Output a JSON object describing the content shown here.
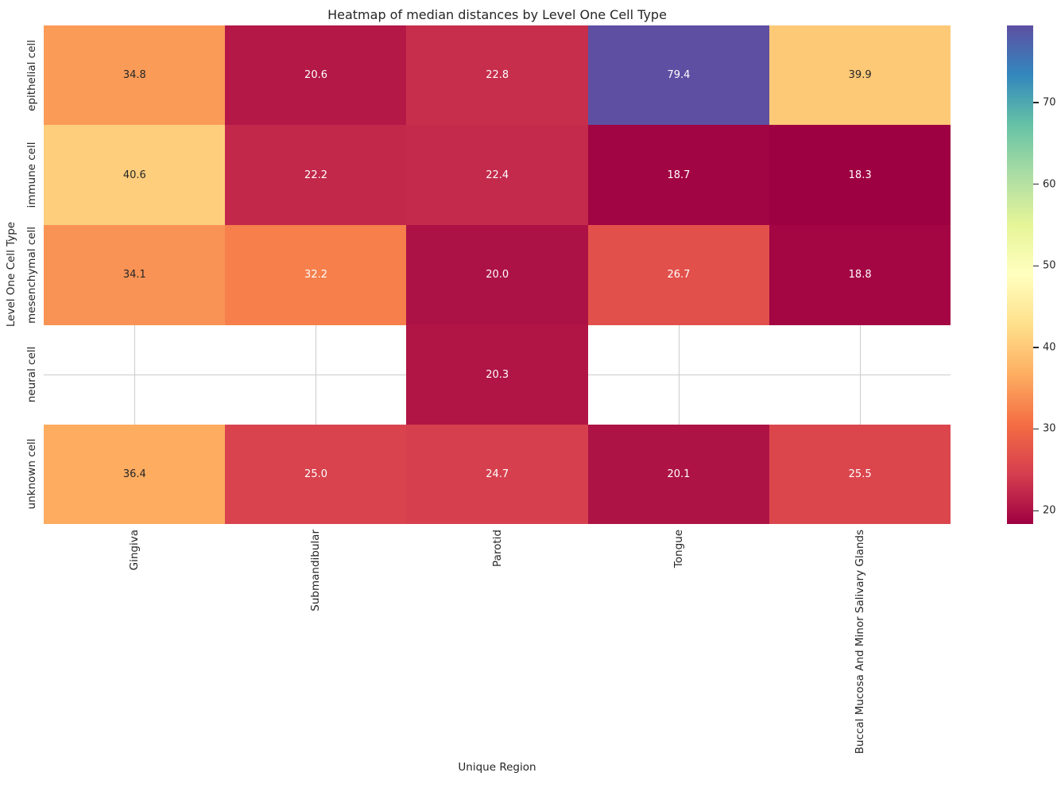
{
  "title": "Heatmap of median distances by Level One Cell Type",
  "chart_data": {
    "type": "heatmap",
    "title": "Heatmap of median distances by Level One Cell Type",
    "xlabel": "Unique Region",
    "ylabel": "Level One Cell Type",
    "x_categories": [
      "Gingiva",
      "Submandibular",
      "Parotid",
      "Tongue",
      "Buccal Mucosa And Minor Salivary Glands"
    ],
    "y_categories": [
      "epithelial cell",
      "immune cell",
      "mesenchymal cell",
      "neural cell",
      "unknown cell"
    ],
    "values": [
      [
        34.8,
        20.6,
        22.8,
        79.4,
        39.9
      ],
      [
        40.6,
        22.2,
        22.4,
        18.7,
        18.3
      ],
      [
        34.1,
        32.2,
        20.0,
        26.7,
        18.8
      ],
      [
        null,
        null,
        20.3,
        null,
        null
      ],
      [
        36.4,
        25.0,
        24.7,
        20.1,
        25.5
      ]
    ],
    "vmin": 18.3,
    "vmax": 79.4,
    "colormap": "Spectral",
    "colormap_stops": [
      "#9e0142",
      "#d53e4f",
      "#f46d43",
      "#fdae61",
      "#fee08b",
      "#ffffbf",
      "#e6f598",
      "#abdda4",
      "#66c2a5",
      "#3288bd",
      "#5e4fa2"
    ],
    "colorbar_ticks": [
      20,
      30,
      40,
      50,
      60,
      70
    ],
    "grid": true,
    "legend_position": "colorbar-right",
    "annotation_decimals": 1
  },
  "colors": {
    "annot_dark": "#262626",
    "annot_light": "#ffffff",
    "grid": "#cccccc",
    "tick_text": "#262626"
  }
}
